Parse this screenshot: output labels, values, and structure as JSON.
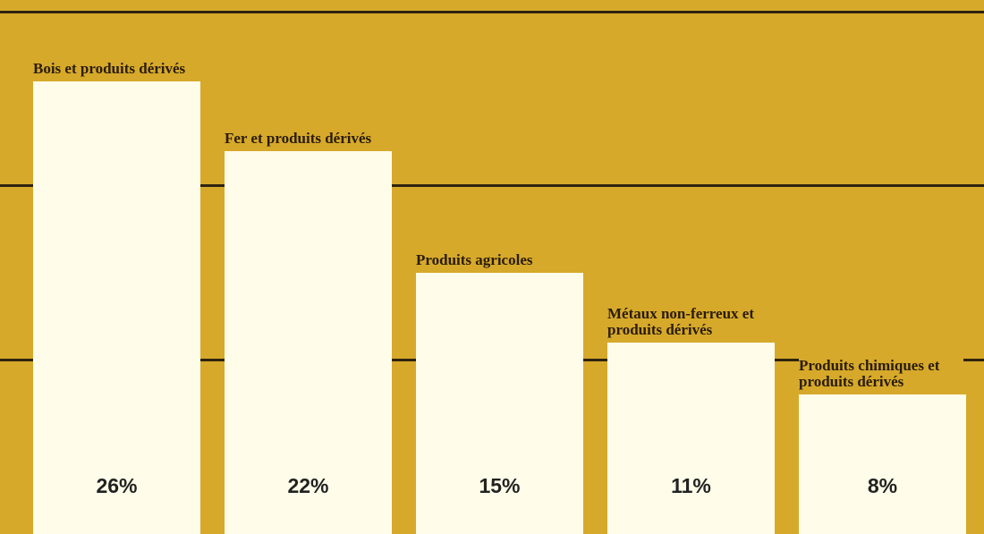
{
  "chart_data": {
    "type": "bar",
    "categories": [
      "Bois et produits dérivés",
      "Fer et produits dérivés",
      "Produits agricoles",
      "Métaux non-ferreux et produits dérivés",
      "Produits chimiques et produits dérivés"
    ],
    "values": [
      26,
      22,
      15,
      11,
      8
    ],
    "value_labels": [
      "26%",
      "22%",
      "15%",
      "11%",
      "8%"
    ],
    "color": "#fffde9",
    "background": "#d6a92b",
    "ylim": [
      0,
      30
    ],
    "yticks": [
      10,
      20,
      30
    ],
    "grid": true
  }
}
